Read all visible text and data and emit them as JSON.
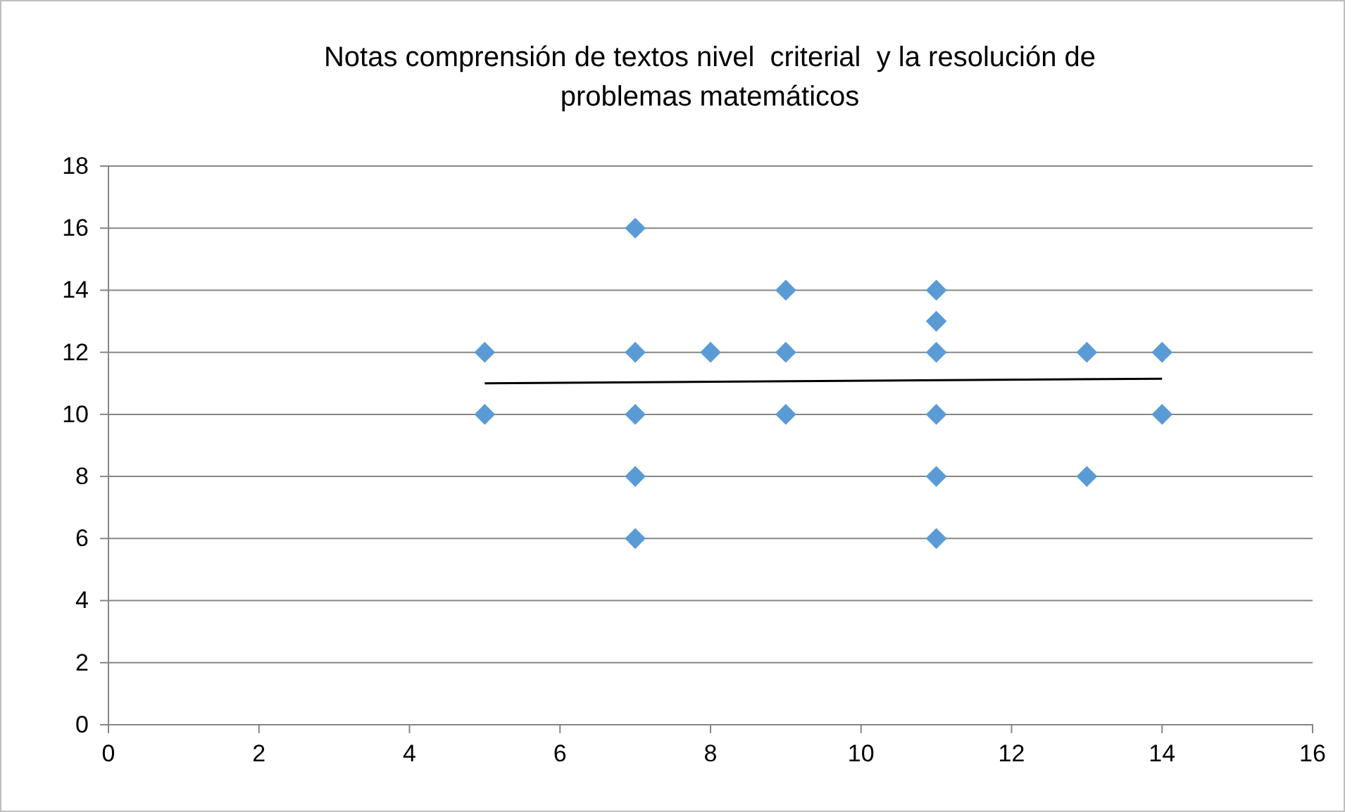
{
  "chart_data": {
    "type": "scatter",
    "title": "Notas comprensión de textos nivel  criterial  y la resolución de problemas matemáticos",
    "series": [
      {
        "color": "#5b9bd5",
        "marker": "diamond",
        "x": [
          5,
          5,
          7,
          7,
          7,
          7,
          7,
          8,
          9,
          9,
          9,
          11,
          11,
          11,
          11,
          11,
          11,
          13,
          13,
          14,
          14
        ],
        "values": [
          12,
          10,
          16,
          12,
          10,
          8,
          6,
          12,
          14,
          12,
          10,
          14,
          13,
          12,
          10,
          8,
          6,
          12,
          8,
          12,
          10
        ]
      },
      {
        "type": "line",
        "color": "#000000",
        "x": [
          5,
          14
        ],
        "values": [
          11.0,
          11.15
        ]
      }
    ],
    "xlim": [
      0,
      16
    ],
    "xticks": [
      0,
      2,
      4,
      6,
      8,
      10,
      12,
      14,
      16
    ],
    "ylim": [
      0,
      18
    ],
    "yticks": [
      0,
      2,
      4,
      6,
      8,
      10,
      12,
      14,
      16,
      18
    ],
    "grid": "y"
  }
}
